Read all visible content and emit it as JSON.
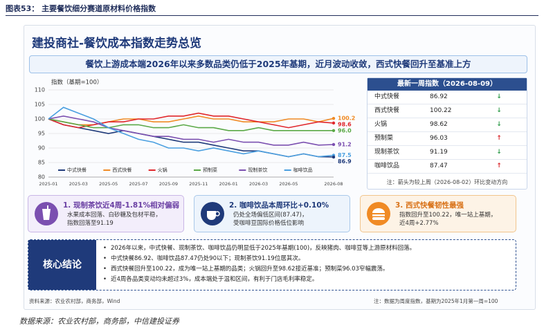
{
  "header": "图表53： 主要餐饮细分赛道原材料价格指数",
  "title": "建投商社-餐饮成本指数走势总览",
  "subtitle": "餐饮上游成本端2026年以来多数品类仍低于2025年基期，近月波动收敛，西式快餐回升至基准上方",
  "chart_data": {
    "type": "line",
    "y_label": "指数（基期=100）",
    "categories": [
      "2025-01",
      null,
      "2025-03",
      null,
      "2025-05",
      null,
      "2025-07",
      null,
      "2025-09",
      null,
      "2025-11",
      null,
      "2026-01",
      null,
      "2026-03",
      null,
      "2026-05",
      null,
      null,
      "2026-08"
    ],
    "ylim": [
      80,
      110
    ],
    "yticks": [
      80,
      85,
      90,
      95,
      100,
      105,
      110
    ],
    "grid": true,
    "series": [
      {
        "name": "中式快餐",
        "color": "#1f3a7a",
        "values": [
          100,
          98,
          97,
          96,
          95,
          96,
          95,
          94,
          93,
          92,
          92,
          91,
          90,
          89,
          89,
          88,
          87,
          88,
          87,
          86.9
        ],
        "value_labels": [
          null,
          null,
          null,
          null,
          null,
          null,
          null,
          null,
          null,
          null,
          null,
          null,
          null,
          null,
          null,
          null,
          null,
          null,
          null,
          "86.9"
        ]
      },
      {
        "name": "西式快餐",
        "color": "#f08a24",
        "values": [
          100,
          99,
          98,
          98,
          99,
          100,
          100,
          99,
          99,
          100,
          101,
          100,
          100,
          99,
          99,
          99,
          100,
          100,
          99,
          100.2
        ],
        "value_labels": [
          null,
          null,
          null,
          null,
          null,
          null,
          null,
          null,
          null,
          null,
          null,
          null,
          null,
          null,
          null,
          null,
          null,
          null,
          null,
          "100.2"
        ]
      },
      {
        "name": "火锅",
        "color": "#e0262b",
        "values": [
          100,
          98,
          97,
          98,
          99,
          99,
          100,
          100,
          101,
          101,
          102,
          101,
          101,
          100,
          99,
          98,
          97,
          98,
          99,
          98.6
        ],
        "value_labels": [
          null,
          null,
          null,
          null,
          null,
          null,
          null,
          null,
          null,
          null,
          null,
          null,
          null,
          null,
          null,
          null,
          null,
          null,
          null,
          "98.6"
        ]
      },
      {
        "name": "预制菜",
        "color": "#5aa846",
        "values": [
          100,
          99,
          98,
          97,
          97,
          98,
          98,
          97,
          97,
          98,
          97,
          97,
          96,
          96,
          97,
          96,
          96,
          96,
          96,
          96
        ],
        "value_labels": [
          null,
          null,
          null,
          null,
          null,
          null,
          null,
          null,
          null,
          null,
          null,
          null,
          null,
          null,
          null,
          null,
          null,
          null,
          null,
          "96.0"
        ]
      },
      {
        "name": "现制茶饮",
        "color": "#7b4fb0",
        "values": [
          100,
          101,
          100,
          99,
          97,
          96,
          95,
          94,
          94,
          93,
          93,
          92,
          93,
          92,
          92,
          91,
          91,
          92,
          91,
          91.2
        ],
        "value_labels": [
          null,
          null,
          null,
          null,
          null,
          null,
          null,
          null,
          null,
          null,
          null,
          null,
          null,
          null,
          null,
          null,
          null,
          null,
          null,
          "91.2"
        ]
      },
      {
        "name": "咖啡饮品",
        "color": "#4a9fe0",
        "values": [
          100,
          104,
          102,
          100,
          97,
          95,
          93,
          92,
          90,
          90,
          89,
          90,
          89,
          88,
          89,
          88,
          87,
          88,
          87,
          87.5
        ],
        "value_labels": [
          null,
          null,
          null,
          null,
          null,
          null,
          null,
          null,
          null,
          null,
          null,
          null,
          null,
          null,
          null,
          null,
          null,
          null,
          null,
          "87.5"
        ]
      }
    ]
  },
  "table": {
    "title": "最新一周指数（2026-08-09）",
    "rows": [
      {
        "name": "中式快餐",
        "value": "86.92",
        "arrow": "↓",
        "color": "#2e9b4a"
      },
      {
        "name": "西式快餐",
        "value": "100.22",
        "arrow": "↓",
        "color": "#2e9b4a"
      },
      {
        "name": "火锅",
        "value": "98.62",
        "arrow": "↓",
        "color": "#2e9b4a"
      },
      {
        "name": "预制菜",
        "value": "96.03",
        "arrow": "↑",
        "color": "#d9262b"
      },
      {
        "name": "现制茶饮",
        "value": "91.19",
        "arrow": "↓",
        "color": "#2e9b4a"
      },
      {
        "name": "咖啡饮品",
        "value": "87.47",
        "arrow": "↑",
        "color": "#d9262b"
      }
    ],
    "note": "注：箭头为较上周（2026-08-02）环比变动方向"
  },
  "cards": [
    {
      "title": "1. 现制茶饮近4周-1.81%相对偏弱",
      "lines": [
        "水果成本回落、白砂糖及包材平稳，",
        "指数回落至91.19"
      ]
    },
    {
      "title": "2. 咖啡饮品本周环比+0.10%",
      "lines": [
        "仍处全场偏低区间(87.47)，",
        "受咖啡豆国际价格低位影响"
      ]
    },
    {
      "title": "3. 西式快餐韧性最强",
      "lines": [
        "指数回升至100.22，唯一站上基期，",
        "近4周+2.77%"
      ]
    }
  ],
  "conclusion": {
    "label": "核心结论",
    "bullets": [
      "2026年以来，中式快餐、现制茶饮、咖啡饮品仍明显低于2025年基期(100)，反映猪肉、咖啡豆等上游原材料回落。",
      "中式快餐86.92、咖啡饮品87.47仍处90以下；现制茶饮91.19位居其次。",
      "西式快餐回升至100.22，成为唯一站上基期的品类；火锅回升至98.62接近基准；预制菜96.03窄幅震荡。",
      "近4周各品类变动均未超过3%，成本端处于温和区间，有利于门店毛利率稳定。"
    ]
  },
  "source_left": "资料来源：农业农村部，商务部，Wind",
  "source_right": "注：数据为周度指数，基期为2025年1月第一周=100",
  "bottom_source": "数据来源：农业农村部，商务部，中信建投证券"
}
